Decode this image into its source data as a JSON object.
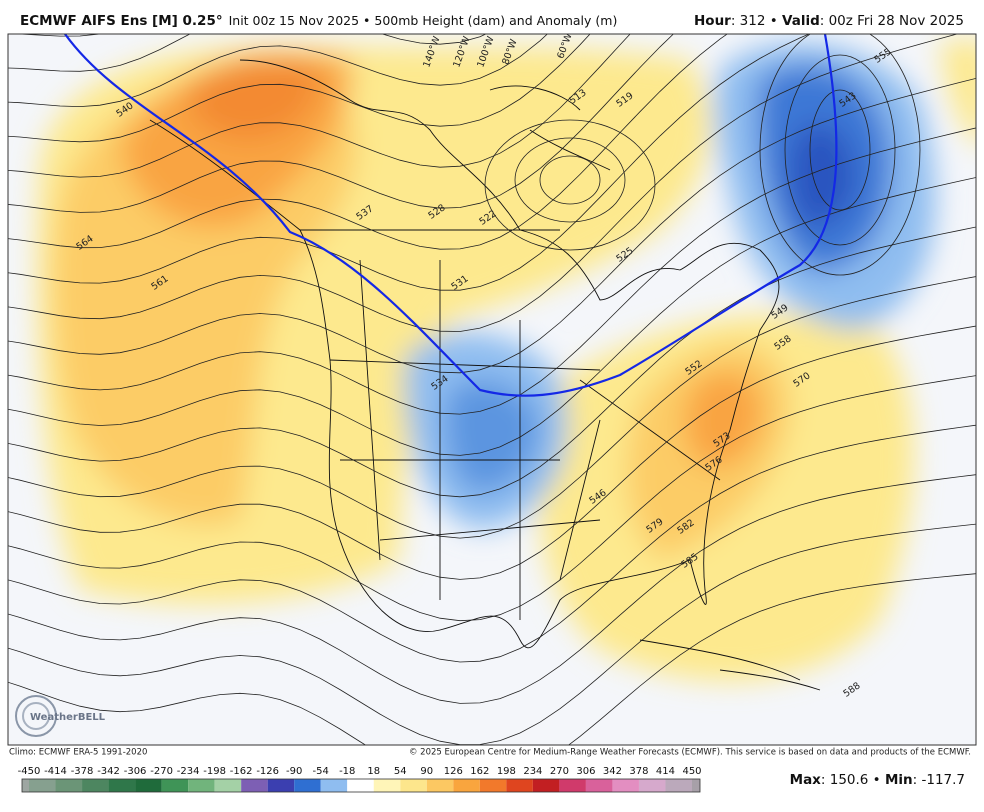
{
  "header": {
    "title": "ECMWF AIFS Ens [M] 0.25°",
    "subtitle": "Init 00z 15 Nov 2025 • 500mb Height (dam) and Anomaly (m)",
    "right": [
      {
        "text": "Hour",
        "bold": true
      },
      {
        "text": ": 312 • ",
        "bold": false
      },
      {
        "text": "Valid",
        "bold": true
      },
      {
        "text": ": 00z Fri 28 Nov 2025",
        "bold": false
      }
    ]
  },
  "map": {
    "longitude_labels": [
      "140°W",
      "120°W",
      "100°W",
      "80°W",
      "60°W"
    ],
    "contour_labels": [
      540,
      564,
      561,
      531,
      522,
      525,
      528,
      513,
      519,
      534,
      537,
      546,
      552,
      555,
      543,
      549,
      558,
      570,
      573,
      576,
      579,
      582,
      585,
      588
    ],
    "logo": "WeatherBELL"
  },
  "footer": {
    "climo": "Climo: ECMWF ERA-5 1991-2020",
    "copyright": "© 2025 European Centre for Medium-Range Weather Forecasts (ECMWF). This service is based on data and products of the ECMWF.",
    "stats": [
      {
        "text": "Max",
        "bold": true
      },
      {
        "text": ": 150.6 • ",
        "bold": false
      },
      {
        "text": "Min",
        "bold": true
      },
      {
        "text": ": -117.7",
        "bold": false
      }
    ]
  },
  "colorbar": {
    "ticks": [
      -450,
      -414,
      -378,
      -342,
      -306,
      -270,
      -234,
      -198,
      -162,
      -126,
      -90,
      -54,
      -18,
      18,
      54,
      90,
      126,
      162,
      198,
      234,
      270,
      306,
      342,
      378,
      414,
      450
    ],
    "colors": [
      "#9ea6a2",
      "#86a08f",
      "#6b9577",
      "#4d8660",
      "#2f774a",
      "#1f6b3b",
      "#3f9457",
      "#71b47c",
      "#a4d1a6",
      "#7d5fb4",
      "#3b3fb0",
      "#2f6fd2",
      "#8fbdf0",
      "#ffffff",
      "#fff5b8",
      "#fde68c",
      "#fcc862",
      "#f9a53e",
      "#f2792b",
      "#df451f",
      "#c21f22",
      "#d03a6b",
      "#d9619b",
      "#e38ec1",
      "#d6a9cc",
      "#bba9bb",
      "#a7a0a8"
    ]
  }
}
